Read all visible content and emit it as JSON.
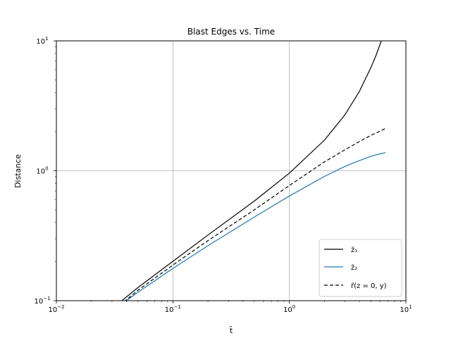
{
  "chart_data": {
    "type": "line",
    "title": "Blast Edges vs. Time",
    "xlabel": "t̃",
    "ylabel": "Distance",
    "x_scale": "log",
    "y_scale": "log",
    "xlim": [
      0.01,
      10
    ],
    "ylim": [
      0.1,
      10
    ],
    "grid": true,
    "legend_position": "lower right",
    "x_ticks": [
      {
        "value": 0.01,
        "base": "10",
        "exp": "−2"
      },
      {
        "value": 0.1,
        "base": "10",
        "exp": "−1"
      },
      {
        "value": 1,
        "base": "10",
        "exp": "0"
      },
      {
        "value": 10,
        "base": "10",
        "exp": "1"
      }
    ],
    "y_ticks": [
      {
        "value": 0.1,
        "base": "10",
        "exp": "−1"
      },
      {
        "value": 1,
        "base": "10",
        "exp": "0"
      },
      {
        "value": 10,
        "base": "10",
        "exp": "1"
      }
    ],
    "series": [
      {
        "name": "z̃₁",
        "color": "#000000",
        "dash": "solid",
        "x": [
          0.035,
          0.05,
          0.1,
          0.2,
          0.5,
          1.0,
          2.0,
          3.0,
          4.0,
          5.0,
          5.5,
          6.0,
          6.3,
          6.5
        ],
        "y": [
          0.097,
          0.126,
          0.201,
          0.32,
          0.585,
          0.96,
          1.72,
          2.7,
          4.1,
          6.2,
          7.6,
          9.4,
          10.6,
          12.0
        ]
      },
      {
        "name": "z̃₂",
        "color": "#1f77b4",
        "dash": "solid",
        "x": [
          0.038,
          0.05,
          0.1,
          0.2,
          0.5,
          1.0,
          2.0,
          3.0,
          4.0,
          5.0,
          6.0,
          6.7
        ],
        "y": [
          0.097,
          0.116,
          0.177,
          0.265,
          0.44,
          0.64,
          0.905,
          1.08,
          1.2,
          1.29,
          1.35,
          1.38
        ]
      },
      {
        "name": "r̃(z = 0, y)",
        "color": "#000000",
        "dash": "dashed",
        "x": [
          0.038,
          0.05,
          0.1,
          0.2,
          0.5,
          1.0,
          2.0,
          3.0,
          4.0,
          5.0,
          6.0,
          6.7
        ],
        "y": [
          0.098,
          0.12,
          0.188,
          0.29,
          0.5,
          0.77,
          1.17,
          1.45,
          1.68,
          1.87,
          2.02,
          2.12
        ]
      }
    ]
  }
}
